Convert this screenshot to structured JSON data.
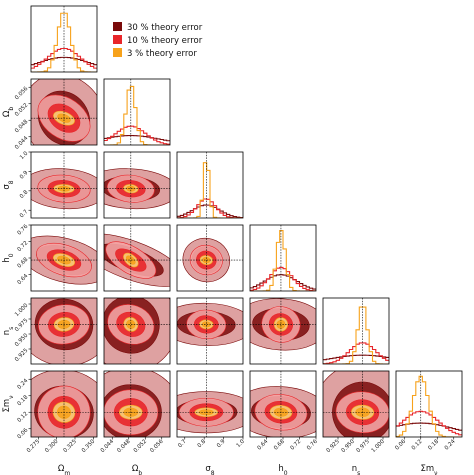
{
  "chart_data": {
    "type": "corner",
    "parameters": [
      {
        "name": "omega_m",
        "label": "Ω_m",
        "range": [
          0.265,
          0.355
        ],
        "true": 0.31,
        "ticks": [
          "0.275",
          "0.300",
          "0.325",
          "0.350"
        ],
        "tick_values": [
          0.275,
          0.3,
          0.325,
          0.35
        ]
      },
      {
        "name": "omega_b",
        "label": "Ω_b",
        "range": [
          0.042,
          0.058
        ],
        "true": 0.0485,
        "ticks": [
          "0.044",
          "0.048",
          "0.052",
          "0.056"
        ],
        "tick_values": [
          0.044,
          0.048,
          0.052,
          0.056
        ]
      },
      {
        "name": "sigma_8",
        "label": "σ_8",
        "range": [
          0.66,
          1.0
        ],
        "true": 0.811,
        "ticks": [
          "0.7",
          "0.8",
          "0.9",
          "1.0"
        ],
        "tick_values": [
          0.7,
          0.8,
          0.9,
          1.0
        ]
      },
      {
        "name": "h_0",
        "label": "h_0",
        "range": [
          0.6,
          0.76
        ],
        "true": 0.675,
        "ticks": [
          "0.64",
          "0.68",
          "0.72",
          "0.76"
        ],
        "tick_values": [
          0.64,
          0.68,
          0.72,
          0.76
        ]
      },
      {
        "name": "n_s",
        "label": "n_s",
        "range": [
          0.9,
          1.01
        ],
        "true": 0.966,
        "ticks": [
          "0.925",
          "0.950",
          "0.975",
          "1.000"
        ],
        "tick_values": [
          0.925,
          0.95,
          0.975,
          1.0
        ]
      },
      {
        "name": "sum_m_nu",
        "label": "Σm_ν",
        "range": [
          0.03,
          0.27
        ],
        "true": 0.12,
        "ticks": [
          "0.06",
          "0.12",
          "0.18",
          "0.24"
        ],
        "tick_values": [
          0.06,
          0.12,
          0.18,
          0.24
        ]
      }
    ],
    "series": [
      {
        "name": "30 % theory error",
        "color": "#7a0a0a",
        "fill_levels": [
          "#d89090",
          "#7a0a0a"
        ],
        "width_factor": [
          1.45,
          1.8,
          1.4,
          1.3,
          2.4,
          2.4
        ]
      },
      {
        "name": "10 % theory error",
        "color": "#e8262a",
        "fill_levels": [
          "#f5a3a3",
          "#e8262a"
        ],
        "width_factor": [
          0.9,
          0.9,
          0.95,
          0.9,
          1.0,
          1.3
        ]
      },
      {
        "name": "3 % theory error",
        "color": "#f7a21b",
        "fill_levels": [
          "#f7d27a",
          "#f7a21b"
        ],
        "width_factor": [
          0.35,
          0.28,
          0.3,
          0.35,
          0.35,
          0.55
        ]
      }
    ],
    "width_base": [
      0.025,
      0.004,
      0.05,
      0.03,
      0.022,
      0.05
    ],
    "correlations": [
      [
        1,
        -0.3,
        -0.1,
        -0.3,
        0.05,
        0.1
      ],
      [
        -0.3,
        1,
        -0.1,
        -0.55,
        -0.1,
        0.0
      ],
      [
        -0.1,
        -0.1,
        1,
        0.1,
        0.05,
        0.0
      ],
      [
        -0.3,
        -0.55,
        0.1,
        1,
        0.1,
        0.1
      ],
      [
        0.05,
        -0.1,
        0.05,
        0.1,
        1,
        0.05
      ],
      [
        0.1,
        0.0,
        0.0,
        0.1,
        0.05,
        1
      ]
    ],
    "grid": false,
    "legend_position": "top-right"
  }
}
